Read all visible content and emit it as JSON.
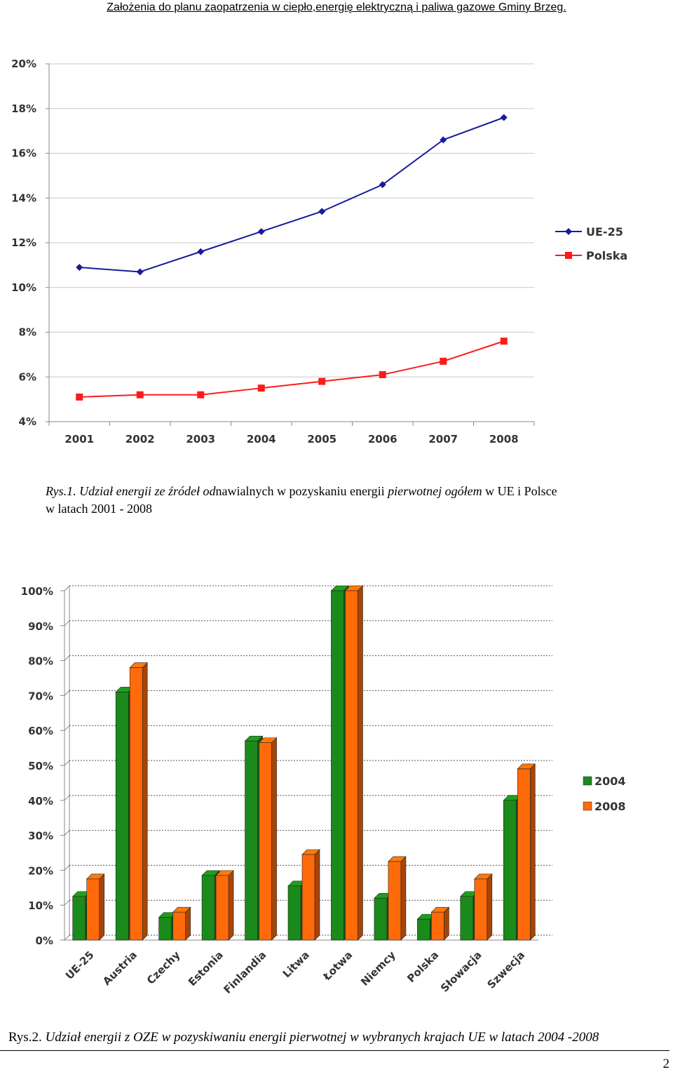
{
  "header": "Założenia do planu zaopatrzenia w ciepło,energię elektryczną i paliwa gazowe Gminy Brzeg.",
  "caption1": {
    "prefix": "Rys.1. ",
    "part1": "Udział energii ze źródeł od",
    "part2": "nawialnych w pozyskaniu energii ",
    "part3": "pierwotnej ogółem",
    "part4": " w UE i Polsce",
    "line2": "w latach  2001 - 2008"
  },
  "caption2": {
    "prefix": "Rys.2. ",
    "text": "Udział energii z OZE w pozyskiwaniu energii pierwotnej w wybranych krajach UE w latach 2004 -2008"
  },
  "page_number": "2",
  "chart_data": [
    {
      "type": "line",
      "x": [
        "2001",
        "2002",
        "2003",
        "2004",
        "2005",
        "2006",
        "2007",
        "2008"
      ],
      "y_ticks": [
        "4%",
        "6%",
        "8%",
        "10%",
        "12%",
        "14%",
        "16%",
        "18%",
        "20%"
      ],
      "ylim": [
        4,
        20
      ],
      "grid": true,
      "legend_position": "right",
      "series": [
        {
          "name": "UE-25",
          "color": "#1a1a9a",
          "marker": "diamond",
          "values": [
            10.9,
            10.7,
            11.6,
            12.5,
            13.4,
            14.6,
            16.6,
            17.6
          ]
        },
        {
          "name": "Polska",
          "color": "#ff1a1a",
          "marker": "square",
          "values": [
            5.1,
            5.2,
            5.2,
            5.5,
            5.8,
            6.1,
            6.7,
            7.6
          ]
        }
      ]
    },
    {
      "type": "bar",
      "categories": [
        "UE-25",
        "Austria",
        "Czechy",
        "Estonia",
        "Finlandia",
        "Litwa",
        "Łotwa",
        "Niemcy",
        "Polska",
        "Słowacja",
        "Szwecja"
      ],
      "y_ticks": [
        "0%",
        "10%",
        "20%",
        "30%",
        "40%",
        "50%",
        "60%",
        "70%",
        "80%",
        "90%",
        "100%"
      ],
      "ylim": [
        0,
        100
      ],
      "grid": true,
      "legend_position": "right",
      "series": [
        {
          "name": "2004",
          "color": "#1a8a1a",
          "values": [
            12.5,
            71,
            6.5,
            18.5,
            57,
            15.5,
            100,
            12,
            6,
            12.5,
            40
          ]
        },
        {
          "name": "2008",
          "color": "#ff6a0a",
          "values": [
            17.5,
            78,
            8,
            18.5,
            56.5,
            24.5,
            100,
            22.5,
            8,
            17.5,
            49
          ]
        }
      ]
    }
  ]
}
